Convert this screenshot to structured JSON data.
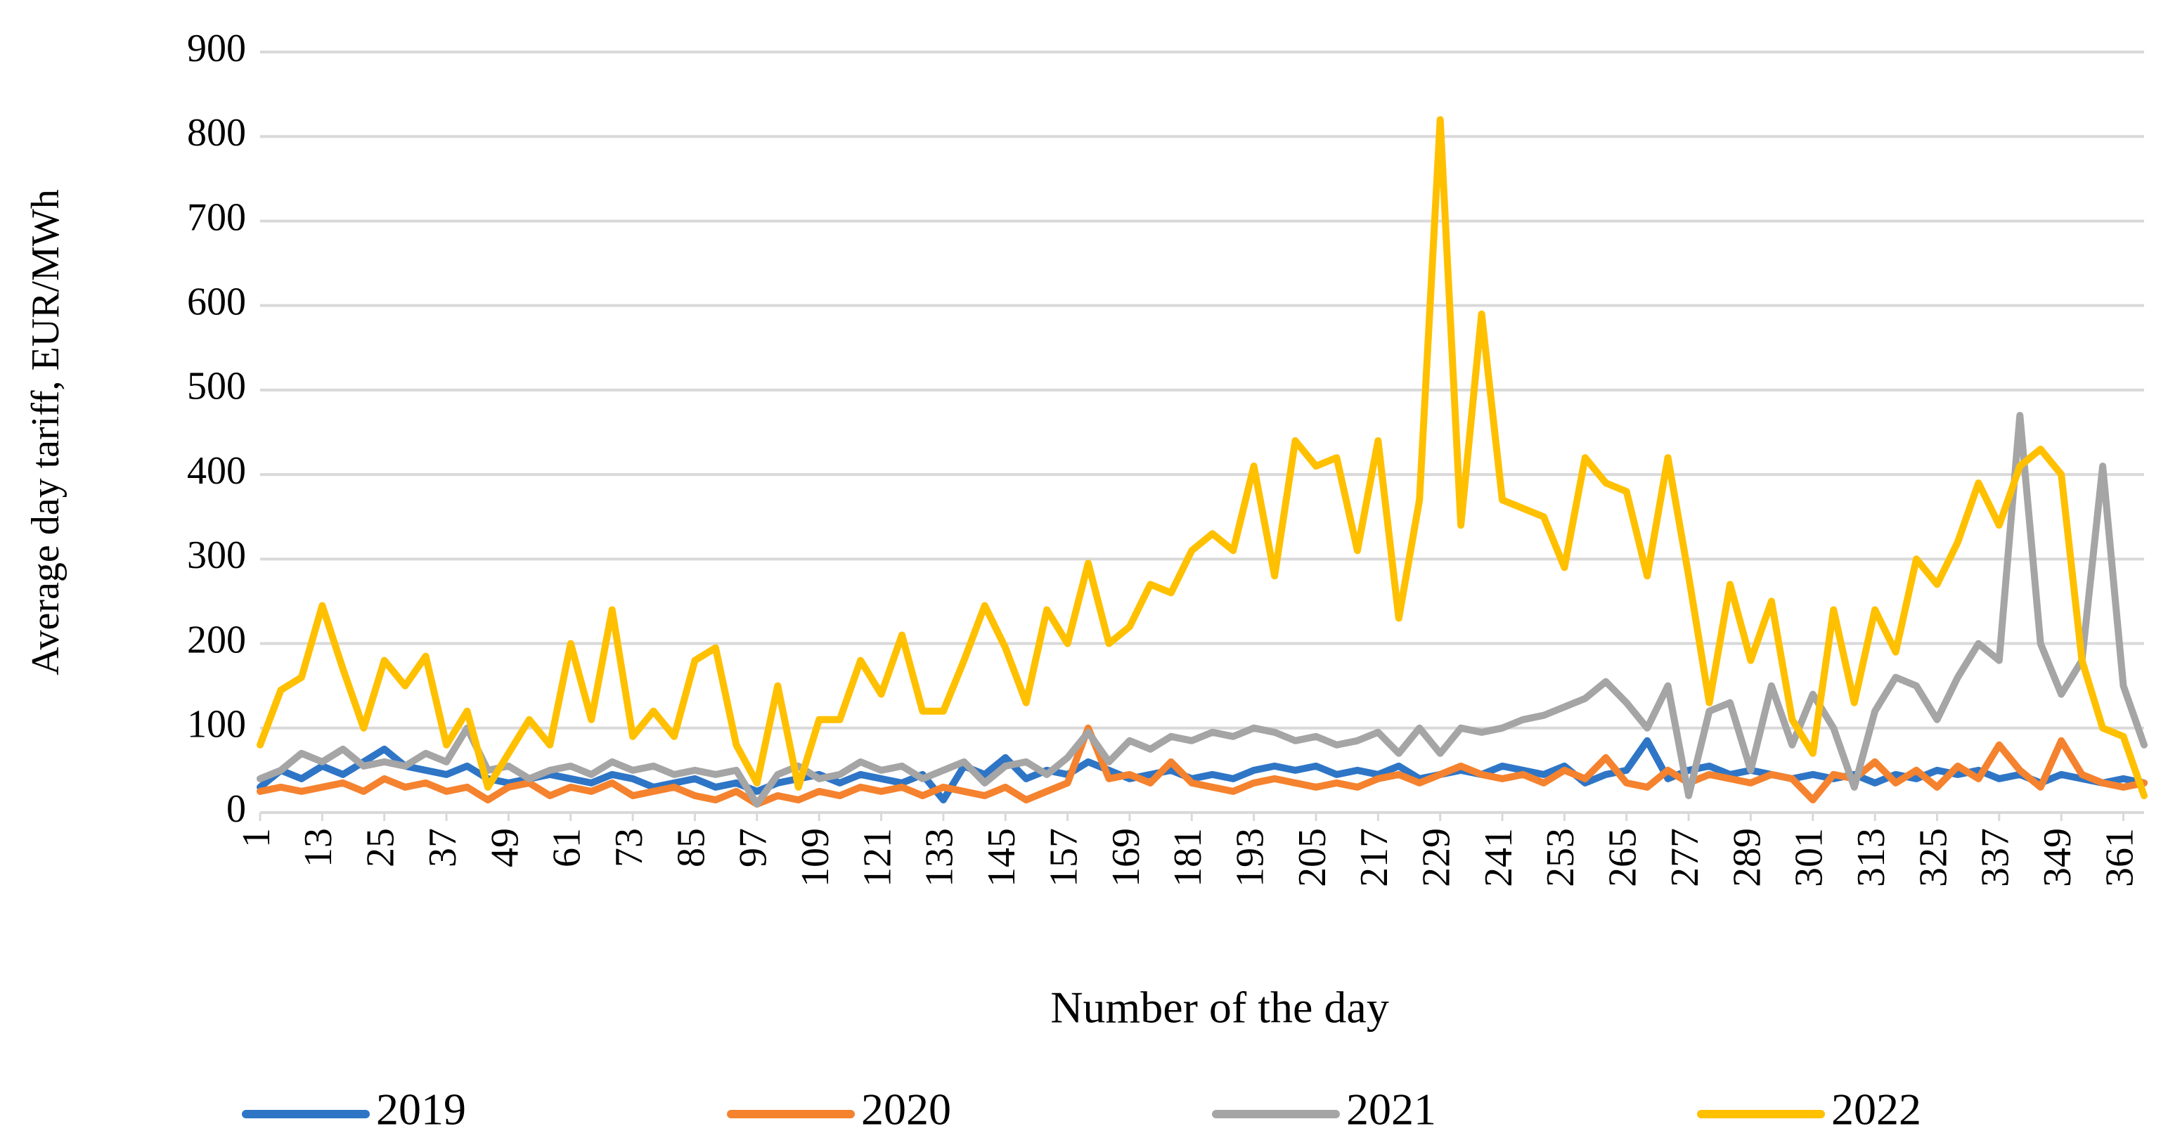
{
  "chart_data": {
    "type": "line",
    "y_label": "Average day tariff, EUR/MWh",
    "x_label": "Number of the day",
    "x": [
      1,
      5,
      9,
      13,
      17,
      21,
      25,
      29,
      33,
      37,
      41,
      45,
      49,
      53,
      57,
      61,
      65,
      69,
      73,
      77,
      81,
      85,
      89,
      93,
      97,
      101,
      105,
      109,
      113,
      117,
      121,
      125,
      129,
      133,
      137,
      141,
      145,
      149,
      153,
      157,
      161,
      165,
      169,
      173,
      177,
      181,
      185,
      189,
      193,
      197,
      201,
      205,
      209,
      213,
      217,
      221,
      225,
      229,
      233,
      237,
      241,
      245,
      249,
      253,
      257,
      261,
      265,
      269,
      273,
      277,
      281,
      285,
      289,
      293,
      297,
      301,
      305,
      309,
      313,
      317,
      321,
      325,
      329,
      333,
      337,
      341,
      345,
      349,
      353,
      357,
      361,
      365
    ],
    "xlim": [
      1,
      365
    ],
    "xticks": [
      1,
      13,
      25,
      37,
      49,
      61,
      73,
      85,
      97,
      109,
      121,
      133,
      145,
      157,
      169,
      181,
      193,
      205,
      217,
      229,
      241,
      253,
      265,
      277,
      289,
      301,
      313,
      325,
      337,
      349,
      361
    ],
    "ylim": [
      0,
      900
    ],
    "yticks": [
      0,
      100,
      200,
      300,
      400,
      500,
      600,
      700,
      800,
      900
    ],
    "grid": true,
    "legend": "bottom",
    "series": [
      {
        "name": "2019",
        "color": "#2e75c6",
        "values": [
          30,
          50,
          40,
          55,
          45,
          60,
          75,
          55,
          50,
          45,
          55,
          40,
          35,
          40,
          45,
          40,
          35,
          45,
          40,
          30,
          35,
          40,
          30,
          35,
          25,
          35,
          40,
          45,
          35,
          45,
          40,
          35,
          45,
          15,
          55,
          45,
          65,
          40,
          50,
          45,
          60,
          50,
          40,
          45,
          50,
          40,
          45,
          40,
          50,
          55,
          50,
          55,
          45,
          50,
          45,
          55,
          40,
          45,
          50,
          45,
          55,
          50,
          45,
          55,
          35,
          45,
          50,
          85,
          40,
          50,
          55,
          45,
          50,
          45,
          40,
          45,
          40,
          45,
          35,
          45,
          40,
          50,
          45,
          50,
          40,
          45,
          35,
          45,
          40,
          35,
          40,
          35
        ]
      },
      {
        "name": "2020",
        "color": "#f5822e",
        "values": [
          25,
          30,
          25,
          30,
          35,
          25,
          40,
          30,
          35,
          25,
          30,
          15,
          30,
          35,
          20,
          30,
          25,
          35,
          20,
          25,
          30,
          20,
          15,
          25,
          10,
          20,
          15,
          25,
          20,
          30,
          25,
          30,
          20,
          30,
          25,
          20,
          30,
          15,
          25,
          35,
          100,
          40,
          45,
          35,
          60,
          35,
          30,
          25,
          35,
          40,
          35,
          30,
          35,
          30,
          40,
          45,
          35,
          45,
          55,
          45,
          40,
          45,
          35,
          50,
          40,
          65,
          35,
          30,
          50,
          35,
          45,
          40,
          35,
          45,
          40,
          15,
          45,
          40,
          60,
          35,
          50,
          30,
          55,
          40,
          80,
          50,
          30,
          85,
          45,
          35,
          30,
          35
        ]
      },
      {
        "name": "2021",
        "color": "#a5a5a5",
        "values": [
          40,
          50,
          70,
          60,
          75,
          55,
          60,
          55,
          70,
          60,
          100,
          50,
          55,
          40,
          50,
          55,
          45,
          60,
          50,
          55,
          45,
          50,
          45,
          50,
          10,
          45,
          55,
          40,
          45,
          60,
          50,
          55,
          40,
          50,
          60,
          35,
          55,
          60,
          45,
          65,
          95,
          60,
          85,
          75,
          90,
          85,
          95,
          90,
          100,
          95,
          85,
          90,
          80,
          85,
          95,
          70,
          100,
          70,
          100,
          95,
          100,
          110,
          115,
          125,
          135,
          155,
          130,
          100,
          150,
          20,
          120,
          130,
          50,
          150,
          80,
          140,
          100,
          30,
          120,
          160,
          150,
          110,
          160,
          200,
          180,
          470,
          200,
          140,
          180,
          410,
          150,
          80
        ]
      },
      {
        "name": "2022",
        "color": "#ffc000",
        "values": [
          80,
          145,
          160,
          245,
          170,
          100,
          180,
          150,
          185,
          80,
          120,
          30,
          70,
          110,
          80,
          200,
          110,
          240,
          90,
          120,
          90,
          180,
          195,
          80,
          35,
          150,
          30,
          110,
          110,
          180,
          140,
          210,
          120,
          120,
          180,
          245,
          195,
          130,
          240,
          200,
          295,
          200,
          220,
          270,
          260,
          310,
          330,
          310,
          410,
          280,
          440,
          410,
          420,
          310,
          440,
          230,
          370,
          820,
          340,
          590,
          370,
          360,
          350,
          290,
          420,
          390,
          380,
          280,
          420,
          280,
          130,
          270,
          180,
          250,
          110,
          70,
          240,
          130,
          240,
          190,
          300,
          270,
          320,
          390,
          340,
          410,
          430,
          400,
          180,
          100,
          90,
          20
        ]
      }
    ]
  }
}
